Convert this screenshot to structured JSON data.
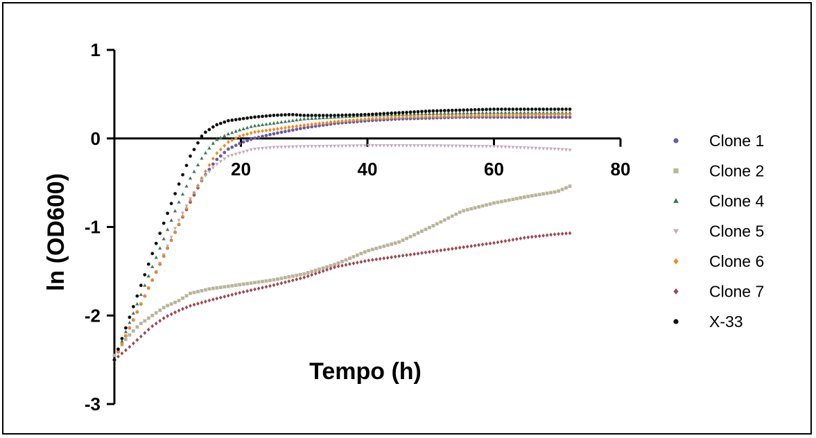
{
  "chart_data": {
    "type": "scatter",
    "title": "",
    "xlabel": "Tempo (h)",
    "ylabel": "ln (OD600)",
    "xlim": [
      0,
      80
    ],
    "ylim": [
      -3,
      1
    ],
    "x_ticks": [
      20,
      40,
      60,
      80
    ],
    "x_tick_labels": [
      "20",
      "40",
      "60",
      "80"
    ],
    "y_ticks": [
      1,
      0,
      -1,
      -2,
      -3
    ],
    "y_tick_labels": [
      "1",
      "0",
      "-1",
      "-2",
      "-3"
    ],
    "grid": false,
    "legend_position": "right",
    "series": [
      {
        "name": "Clone 1",
        "color": "#6a5aa6",
        "marker": "circle",
        "points": [
          [
            0,
            -2.5
          ],
          [
            2,
            -2.2
          ],
          [
            4,
            -1.9
          ],
          [
            6,
            -1.6
          ],
          [
            8,
            -1.3
          ],
          [
            10,
            -1.0
          ],
          [
            12,
            -0.72
          ],
          [
            14,
            -0.45
          ],
          [
            16,
            -0.25
          ],
          [
            18,
            -0.12
          ],
          [
            20,
            -0.05
          ],
          [
            22,
            0.0
          ],
          [
            25,
            0.05
          ],
          [
            30,
            0.12
          ],
          [
            35,
            0.17
          ],
          [
            40,
            0.2
          ],
          [
            45,
            0.22
          ],
          [
            50,
            0.23
          ],
          [
            55,
            0.24
          ],
          [
            60,
            0.24
          ],
          [
            65,
            0.24
          ],
          [
            70,
            0.24
          ],
          [
            72,
            0.24
          ]
        ]
      },
      {
        "name": "Clone 2",
        "color": "#b8b59a",
        "marker": "square",
        "points": [
          [
            0,
            -2.45
          ],
          [
            2,
            -2.25
          ],
          [
            4,
            -2.1
          ],
          [
            6,
            -2.0
          ],
          [
            8,
            -1.9
          ],
          [
            10,
            -1.84
          ],
          [
            12,
            -1.75
          ],
          [
            15,
            -1.7
          ],
          [
            20,
            -1.65
          ],
          [
            25,
            -1.6
          ],
          [
            30,
            -1.53
          ],
          [
            35,
            -1.42
          ],
          [
            40,
            -1.27
          ],
          [
            45,
            -1.17
          ],
          [
            50,
            -1.0
          ],
          [
            55,
            -0.82
          ],
          [
            60,
            -0.73
          ],
          [
            65,
            -0.66
          ],
          [
            70,
            -0.6
          ],
          [
            72,
            -0.54
          ]
        ]
      },
      {
        "name": "Clone 4",
        "color": "#3d7a5a",
        "marker": "triangle-up",
        "points": [
          [
            0,
            -2.5
          ],
          [
            2,
            -2.15
          ],
          [
            4,
            -1.8
          ],
          [
            6,
            -1.45
          ],
          [
            8,
            -1.1
          ],
          [
            10,
            -0.75
          ],
          [
            12,
            -0.45
          ],
          [
            14,
            -0.2
          ],
          [
            16,
            -0.02
          ],
          [
            18,
            0.05
          ],
          [
            20,
            0.1
          ],
          [
            22,
            0.14
          ],
          [
            25,
            0.17
          ],
          [
            30,
            0.22
          ],
          [
            35,
            0.24
          ],
          [
            40,
            0.26
          ],
          [
            50,
            0.28
          ],
          [
            60,
            0.29
          ],
          [
            70,
            0.29
          ],
          [
            72,
            0.29
          ]
        ]
      },
      {
        "name": "Clone 5",
        "color": "#c4aebd",
        "marker": "triangle-down",
        "points": [
          [
            0,
            -2.5
          ],
          [
            2,
            -2.2
          ],
          [
            4,
            -1.9
          ],
          [
            6,
            -1.6
          ],
          [
            8,
            -1.28
          ],
          [
            10,
            -0.95
          ],
          [
            12,
            -0.68
          ],
          [
            14,
            -0.45
          ],
          [
            16,
            -0.3
          ],
          [
            18,
            -0.2
          ],
          [
            20,
            -0.16
          ],
          [
            22,
            -0.12
          ],
          [
            25,
            -0.1
          ],
          [
            30,
            -0.09
          ],
          [
            40,
            -0.08
          ],
          [
            50,
            -0.08
          ],
          [
            60,
            -0.09
          ],
          [
            70,
            -0.12
          ],
          [
            72,
            -0.13
          ]
        ]
      },
      {
        "name": "Clone 6",
        "color": "#f08a1c",
        "marker": "diamond",
        "points": [
          [
            0,
            -2.5
          ],
          [
            2,
            -2.2
          ],
          [
            4,
            -1.9
          ],
          [
            6,
            -1.6
          ],
          [
            8,
            -1.3
          ],
          [
            10,
            -1.0
          ],
          [
            12,
            -0.7
          ],
          [
            14,
            -0.42
          ],
          [
            16,
            -0.18
          ],
          [
            18,
            -0.04
          ],
          [
            20,
            0.03
          ],
          [
            22,
            0.07
          ],
          [
            25,
            0.1
          ],
          [
            30,
            0.15
          ],
          [
            35,
            0.19
          ],
          [
            40,
            0.22
          ],
          [
            45,
            0.24
          ],
          [
            50,
            0.25
          ],
          [
            60,
            0.26
          ],
          [
            70,
            0.27
          ],
          [
            72,
            0.27
          ]
        ]
      },
      {
        "name": "Clone 7",
        "color": "#9b4a54",
        "marker": "diamond",
        "points": [
          [
            0,
            -2.5
          ],
          [
            2,
            -2.38
          ],
          [
            4,
            -2.25
          ],
          [
            6,
            -2.12
          ],
          [
            8,
            -2.02
          ],
          [
            10,
            -1.95
          ],
          [
            12,
            -1.89
          ],
          [
            15,
            -1.83
          ],
          [
            20,
            -1.74
          ],
          [
            25,
            -1.66
          ],
          [
            30,
            -1.57
          ],
          [
            35,
            -1.45
          ],
          [
            40,
            -1.38
          ],
          [
            45,
            -1.33
          ],
          [
            50,
            -1.28
          ],
          [
            55,
            -1.23
          ],
          [
            60,
            -1.18
          ],
          [
            65,
            -1.12
          ],
          [
            70,
            -1.08
          ],
          [
            72,
            -1.07
          ]
        ]
      },
      {
        "name": "X-33",
        "color": "#111111",
        "marker": "circle",
        "points": [
          [
            0,
            -2.5
          ],
          [
            2,
            -2.1
          ],
          [
            4,
            -1.7
          ],
          [
            6,
            -1.3
          ],
          [
            8,
            -0.92
          ],
          [
            10,
            -0.55
          ],
          [
            12,
            -0.2
          ],
          [
            14,
            0.05
          ],
          [
            16,
            0.15
          ],
          [
            18,
            0.2
          ],
          [
            20,
            0.22
          ],
          [
            22,
            0.24
          ],
          [
            25,
            0.26
          ],
          [
            28,
            0.27
          ],
          [
            30,
            0.26
          ],
          [
            35,
            0.26
          ],
          [
            40,
            0.27
          ],
          [
            45,
            0.29
          ],
          [
            50,
            0.31
          ],
          [
            55,
            0.32
          ],
          [
            60,
            0.33
          ],
          [
            65,
            0.33
          ],
          [
            70,
            0.33
          ],
          [
            72,
            0.33
          ]
        ]
      }
    ]
  }
}
